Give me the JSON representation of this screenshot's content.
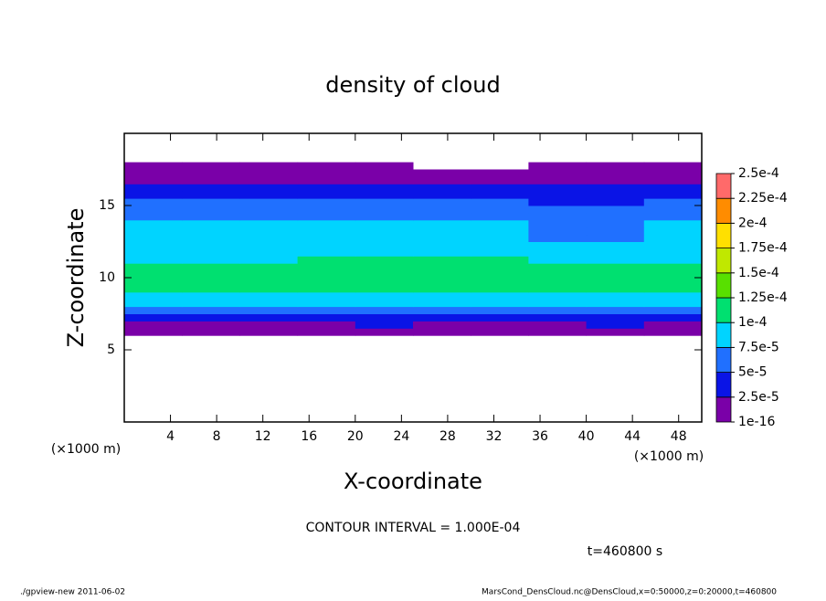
{
  "chart_data": {
    "type": "heatmap",
    "title": "density of cloud",
    "x_label": "X-coordinate",
    "y_label": "Z-coordinate",
    "x_unit": "(×1000 m)",
    "note": "CONTOUR INTERVAL = 1.000E-04",
    "time_label": "t=460800 s",
    "footer_left": "./gpview-new  2011-06-02",
    "footer_right": "MarsCond_DensCloud.nc@DensCloud,x=0:50000,z=0:20000,t=460800",
    "xlim": [
      0,
      50
    ],
    "ylim": [
      0,
      20
    ],
    "xticks": [
      4,
      8,
      12,
      16,
      20,
      24,
      28,
      32,
      36,
      40,
      44,
      48
    ],
    "yticks": [
      5,
      10,
      15
    ],
    "x": [
      2.5,
      7.5,
      12.5,
      17.5,
      22.5,
      27.5,
      32.5,
      37.5,
      42.5,
      47.5
    ],
    "y": [
      6.25,
      6.75,
      7.25,
      7.75,
      8.25,
      8.75,
      9.25,
      9.75,
      10.25,
      10.75,
      11.25,
      11.75,
      12.25,
      12.75,
      13.25,
      13.75,
      14.25,
      14.75,
      15.25,
      15.75,
      16.25,
      16.75,
      17.25,
      17.75
    ],
    "z": [
      [
        1e-06,
        1e-06,
        1e-06,
        1e-06,
        1e-06,
        1e-06,
        1e-06,
        1e-06,
        1e-06,
        1e-06
      ],
      [
        1e-05,
        1e-05,
        1e-05,
        1e-05,
        3e-05,
        1e-05,
        1e-05,
        1e-05,
        3e-05,
        1e-05
      ],
      [
        3e-05,
        4e-05,
        3e-05,
        3e-05,
        3e-05,
        4e-05,
        3e-05,
        3e-05,
        3e-05,
        4e-05
      ],
      [
        6e-05,
        6e-05,
        6e-05,
        6e-05,
        5.5e-05,
        6e-05,
        6e-05,
        6e-05,
        5.5e-05,
        6e-05
      ],
      [
        8e-05,
        8e-05,
        8e-05,
        8e-05,
        8e-05,
        8e-05,
        8e-05,
        8e-05,
        8e-05,
        8e-05
      ],
      [
        9e-05,
        9e-05,
        9e-05,
        9e-05,
        9e-05,
        9e-05,
        9e-05,
        9e-05,
        9e-05,
        9e-05
      ],
      [
        0.000105,
        0.000105,
        0.000105,
        0.000105,
        0.000105,
        0.000105,
        0.000105,
        0.000105,
        0.000105,
        0.000105
      ],
      [
        0.000115,
        0.000115,
        0.000115,
        0.000115,
        0.000115,
        0.000115,
        0.000115,
        0.000115,
        0.000115,
        0.000115
      ],
      [
        0.00011,
        0.00011,
        0.00011,
        0.00011,
        0.00011,
        0.00011,
        0.00011,
        0.00011,
        0.00011,
        0.00011
      ],
      [
        0.000105,
        0.000105,
        0.000105,
        0.000105,
        0.000105,
        0.00011,
        0.00011,
        0.00011,
        0.000105,
        0.000105
      ],
      [
        9.5e-05,
        9.5e-05,
        9.5e-05,
        0.000102,
        0.000102,
        0.000102,
        0.000102,
        9.5e-05,
        9.5e-05,
        9.5e-05
      ],
      [
        8.5e-05,
        8.5e-05,
        8.5e-05,
        9.5e-05,
        9.5e-05,
        9.5e-05,
        8.5e-05,
        8.5e-05,
        8.5e-05,
        8.5e-05
      ],
      [
        8e-05,
        8e-05,
        8e-05,
        8e-05,
        8e-05,
        8e-05,
        8e-05,
        8e-05,
        8e-05,
        8e-05
      ],
      [
        8e-05,
        8e-05,
        8e-05,
        8e-05,
        8e-05,
        8e-05,
        8e-05,
        7e-05,
        7e-05,
        8e-05
      ],
      [
        7.8e-05,
        7.8e-05,
        7.8e-05,
        7.8e-05,
        7.8e-05,
        7.8e-05,
        7.8e-05,
        6.5e-05,
        6.5e-05,
        7.8e-05
      ],
      [
        7.6e-05,
        7.6e-05,
        7.6e-05,
        7.6e-05,
        7.6e-05,
        7.6e-05,
        7.6e-05,
        6e-05,
        6e-05,
        7.6e-05
      ],
      [
        7e-05,
        7e-05,
        7e-05,
        7e-05,
        7e-05,
        7e-05,
        6e-05,
        5.5e-05,
        5.5e-05,
        7e-05
      ],
      [
        6e-05,
        6e-05,
        6e-05,
        6e-05,
        6e-05,
        6e-05,
        5.5e-05,
        5e-05,
        5e-05,
        6e-05
      ],
      [
        5.5e-05,
        5.5e-05,
        5.5e-05,
        5.5e-05,
        5.5e-05,
        5.5e-05,
        5e-05,
        4.5e-05,
        4.5e-05,
        5.5e-05
      ],
      [
        4.5e-05,
        4.5e-05,
        4.5e-05,
        4.5e-05,
        4.5e-05,
        4.5e-05,
        4.5e-05,
        4e-05,
        4e-05,
        4.5e-05
      ],
      [
        3.5e-05,
        3.5e-05,
        3.5e-05,
        3.5e-05,
        3.5e-05,
        3.5e-05,
        3.5e-05,
        3.5e-05,
        3.5e-05,
        3.5e-05
      ],
      [
        2e-05,
        2e-05,
        2e-05,
        2e-05,
        2e-05,
        2e-05,
        2e-05,
        2e-05,
        2e-05,
        2e-05
      ],
      [
        1e-05,
        1e-05,
        1e-05,
        1e-05,
        1e-05,
        1e-05,
        1e-05,
        1e-05,
        1e-05,
        1e-05
      ],
      [
        5e-06,
        5e-06,
        5e-06,
        5e-06,
        5e-06,
        null,
        null,
        5e-06,
        5e-06,
        5e-06
      ]
    ],
    "colorbar_ticks": [
      1e-16,
      {
        "value": 2.5e-05,
        "label": "2.5e-5"
      },
      {
        "value": 5e-05,
        "label": "5e-5"
      },
      {
        "value": 7.5e-05,
        "label": "7.5e-5"
      },
      {
        "value": 0.0001,
        "label": "1e-4"
      },
      {
        "value": 0.000125,
        "label": "1.25e-4"
      },
      {
        "value": 0.00015,
        "label": "1.5e-4"
      },
      {
        "value": 0.000175,
        "label": "1.75e-4"
      },
      {
        "value": 0.0002,
        "label": "2e-4"
      },
      {
        "value": 0.000225,
        "label": "2.25e-4"
      },
      {
        "value": 0.00025,
        "label": "2.5e-4"
      }
    ],
    "colors": [
      "#7a00a8",
      "#0a14e6",
      "#2070ff",
      "#00d4ff",
      "#00e070",
      "#58e000",
      "#c0e800",
      "#ffe000",
      "#ff8c00",
      "#ff6a6a"
    ]
  }
}
